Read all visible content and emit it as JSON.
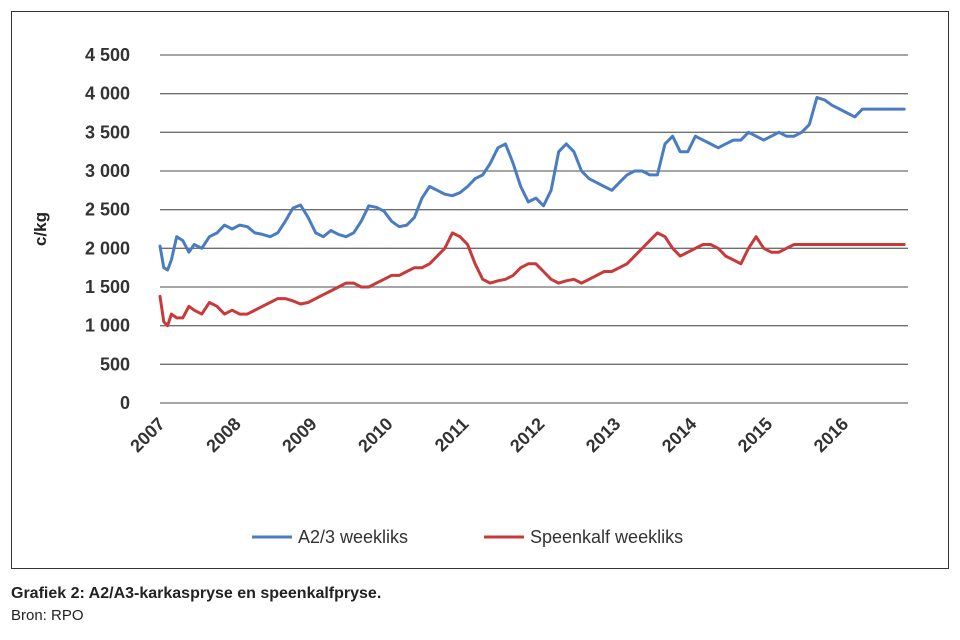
{
  "chart_data": {
    "type": "line",
    "ylabel": "c/kg",
    "ylim": [
      0,
      4500
    ],
    "yticks": [
      0,
      500,
      1000,
      1500,
      2000,
      2500,
      3000,
      3500,
      4000,
      4500
    ],
    "ytick_labels": [
      "0",
      "500",
      "1 000",
      "1 500",
      "2 000",
      "2 500",
      "3 000",
      "3 500",
      "4 000",
      "4 500"
    ],
    "xlim": [
      2007.0,
      2016.85
    ],
    "xticks": [
      2007,
      2008,
      2009,
      2010,
      2011,
      2012,
      2013,
      2014,
      2015,
      2016
    ],
    "xtick_labels": [
      "2007",
      "2008",
      "2009",
      "2010",
      "2011",
      "2012",
      "2013",
      "2014",
      "2015",
      "2016"
    ],
    "grid": true,
    "legend_position": "bottom",
    "series": [
      {
        "name": "A2/3 weekliks",
        "color": "#4a7cc4",
        "x": [
          2007.0,
          2007.05,
          2007.1,
          2007.15,
          2007.22,
          2007.3,
          2007.38,
          2007.45,
          2007.55,
          2007.65,
          2007.75,
          2007.85,
          2007.95,
          2008.05,
          2008.15,
          2008.25,
          2008.35,
          2008.45,
          2008.55,
          2008.65,
          2008.75,
          2008.85,
          2008.95,
          2009.05,
          2009.15,
          2009.25,
          2009.35,
          2009.45,
          2009.55,
          2009.65,
          2009.75,
          2009.85,
          2009.95,
          2010.05,
          2010.15,
          2010.25,
          2010.35,
          2010.45,
          2010.55,
          2010.65,
          2010.75,
          2010.85,
          2010.95,
          2011.05,
          2011.15,
          2011.25,
          2011.35,
          2011.45,
          2011.55,
          2011.65,
          2011.75,
          2011.85,
          2011.95,
          2012.05,
          2012.15,
          2012.25,
          2012.35,
          2012.45,
          2012.55,
          2012.65,
          2012.75,
          2012.85,
          2012.95,
          2013.05,
          2013.15,
          2013.25,
          2013.35,
          2013.45,
          2013.55,
          2013.65,
          2013.75,
          2013.85,
          2013.95,
          2014.05,
          2014.15,
          2014.25,
          2014.35,
          2014.45,
          2014.55,
          2014.65,
          2014.75,
          2014.85,
          2014.95,
          2015.05,
          2015.15,
          2015.25,
          2015.35,
          2015.45,
          2015.55,
          2015.65,
          2015.75,
          2015.85,
          2015.95,
          2016.05,
          2016.15,
          2016.25,
          2016.35,
          2016.45,
          2016.55,
          2016.65,
          2016.75,
          2016.8
        ],
        "values": [
          2030,
          1750,
          1720,
          1850,
          2150,
          2100,
          1950,
          2050,
          2000,
          2150,
          2200,
          2300,
          2250,
          2300,
          2280,
          2200,
          2180,
          2150,
          2200,
          2350,
          2520,
          2560,
          2400,
          2200,
          2150,
          2230,
          2180,
          2150,
          2200,
          2350,
          2550,
          2530,
          2480,
          2350,
          2280,
          2300,
          2400,
          2650,
          2800,
          2750,
          2700,
          2680,
          2720,
          2800,
          2900,
          2950,
          3100,
          3300,
          3350,
          3100,
          2800,
          2600,
          2650,
          2550,
          2750,
          3250,
          3350,
          3250,
          3000,
          2900,
          2850,
          2800,
          2750,
          2850,
          2950,
          3000,
          3000,
          2950,
          2950,
          3350,
          3450,
          3250,
          3250,
          3450,
          3400,
          3350,
          3300,
          3350,
          3400,
          3400,
          3500,
          3450,
          3400,
          3450,
          3500,
          3450,
          3450,
          3500,
          3600,
          3950,
          3920,
          3850,
          3800,
          3750,
          3700,
          3800,
          3800,
          3800,
          3800,
          3800,
          3800,
          3800
        ]
      },
      {
        "name": "Speenkalf weekliks",
        "color": "#c83a3a",
        "x": [
          2007.0,
          2007.05,
          2007.1,
          2007.15,
          2007.22,
          2007.3,
          2007.38,
          2007.45,
          2007.55,
          2007.65,
          2007.75,
          2007.85,
          2007.95,
          2008.05,
          2008.15,
          2008.25,
          2008.35,
          2008.45,
          2008.55,
          2008.65,
          2008.75,
          2008.85,
          2008.95,
          2009.05,
          2009.15,
          2009.25,
          2009.35,
          2009.45,
          2009.55,
          2009.65,
          2009.75,
          2009.85,
          2009.95,
          2010.05,
          2010.15,
          2010.25,
          2010.35,
          2010.45,
          2010.55,
          2010.65,
          2010.75,
          2010.85,
          2010.95,
          2011.05,
          2011.15,
          2011.25,
          2011.35,
          2011.45,
          2011.55,
          2011.65,
          2011.75,
          2011.85,
          2011.95,
          2012.05,
          2012.15,
          2012.25,
          2012.35,
          2012.45,
          2012.55,
          2012.65,
          2012.75,
          2012.85,
          2012.95,
          2013.05,
          2013.15,
          2013.25,
          2013.35,
          2013.45,
          2013.55,
          2013.65,
          2013.75,
          2013.85,
          2013.95,
          2014.05,
          2014.15,
          2014.25,
          2014.35,
          2014.45,
          2014.55,
          2014.65,
          2014.75,
          2014.85,
          2014.95,
          2015.05,
          2015.15,
          2015.25,
          2015.35,
          2015.45,
          2015.55,
          2015.65,
          2015.75,
          2015.85,
          2015.95,
          2016.05,
          2016.15,
          2016.25,
          2016.35,
          2016.45,
          2016.55,
          2016.65,
          2016.75,
          2016.8
        ],
        "values": [
          1380,
          1050,
          1000,
          1150,
          1100,
          1100,
          1250,
          1200,
          1150,
          1300,
          1250,
          1150,
          1200,
          1150,
          1150,
          1200,
          1250,
          1300,
          1350,
          1350,
          1320,
          1280,
          1300,
          1350,
          1400,
          1450,
          1500,
          1550,
          1550,
          1500,
          1500,
          1550,
          1600,
          1650,
          1650,
          1700,
          1750,
          1750,
          1800,
          1900,
          2000,
          2200,
          2150,
          2050,
          1800,
          1600,
          1550,
          1580,
          1600,
          1650,
          1750,
          1800,
          1800,
          1700,
          1600,
          1550,
          1580,
          1600,
          1550,
          1600,
          1650,
          1700,
          1700,
          1750,
          1800,
          1900,
          2000,
          2100,
          2200,
          2150,
          2000,
          1900,
          1950,
          2000,
          2050,
          2050,
          2000,
          1900,
          1850,
          1800,
          2000,
          2150,
          2000,
          1950,
          1950,
          2000,
          2050,
          2050,
          2050,
          2050,
          2050,
          2050,
          2050,
          2050,
          2050,
          2050,
          2050,
          2050,
          2050,
          2050,
          2050,
          2050
        ]
      }
    ]
  },
  "caption": "Grafiek 2: A2/A3-karkaspryse en speenkalfpryse.",
  "source": "Bron: RPO"
}
